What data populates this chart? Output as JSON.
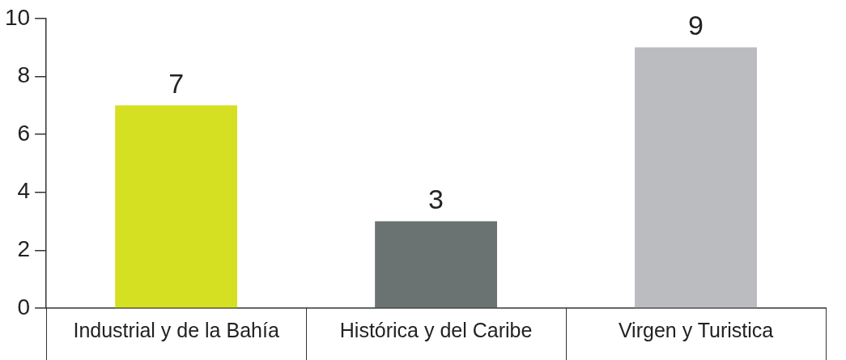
{
  "chart_data": {
    "type": "bar",
    "categories": [
      "Industrial y de la Bahía",
      "Histórica y del Caribe",
      "Virgen y Turistica"
    ],
    "values": [
      7,
      3,
      9
    ],
    "colors": [
      "#d6e022",
      "#6b7272",
      "#bbbcc0"
    ],
    "ylim": [
      0,
      10
    ],
    "yticks": [
      0,
      2,
      4,
      6,
      8,
      10
    ],
    "grid": false,
    "legend": false,
    "data_labels": true
  }
}
